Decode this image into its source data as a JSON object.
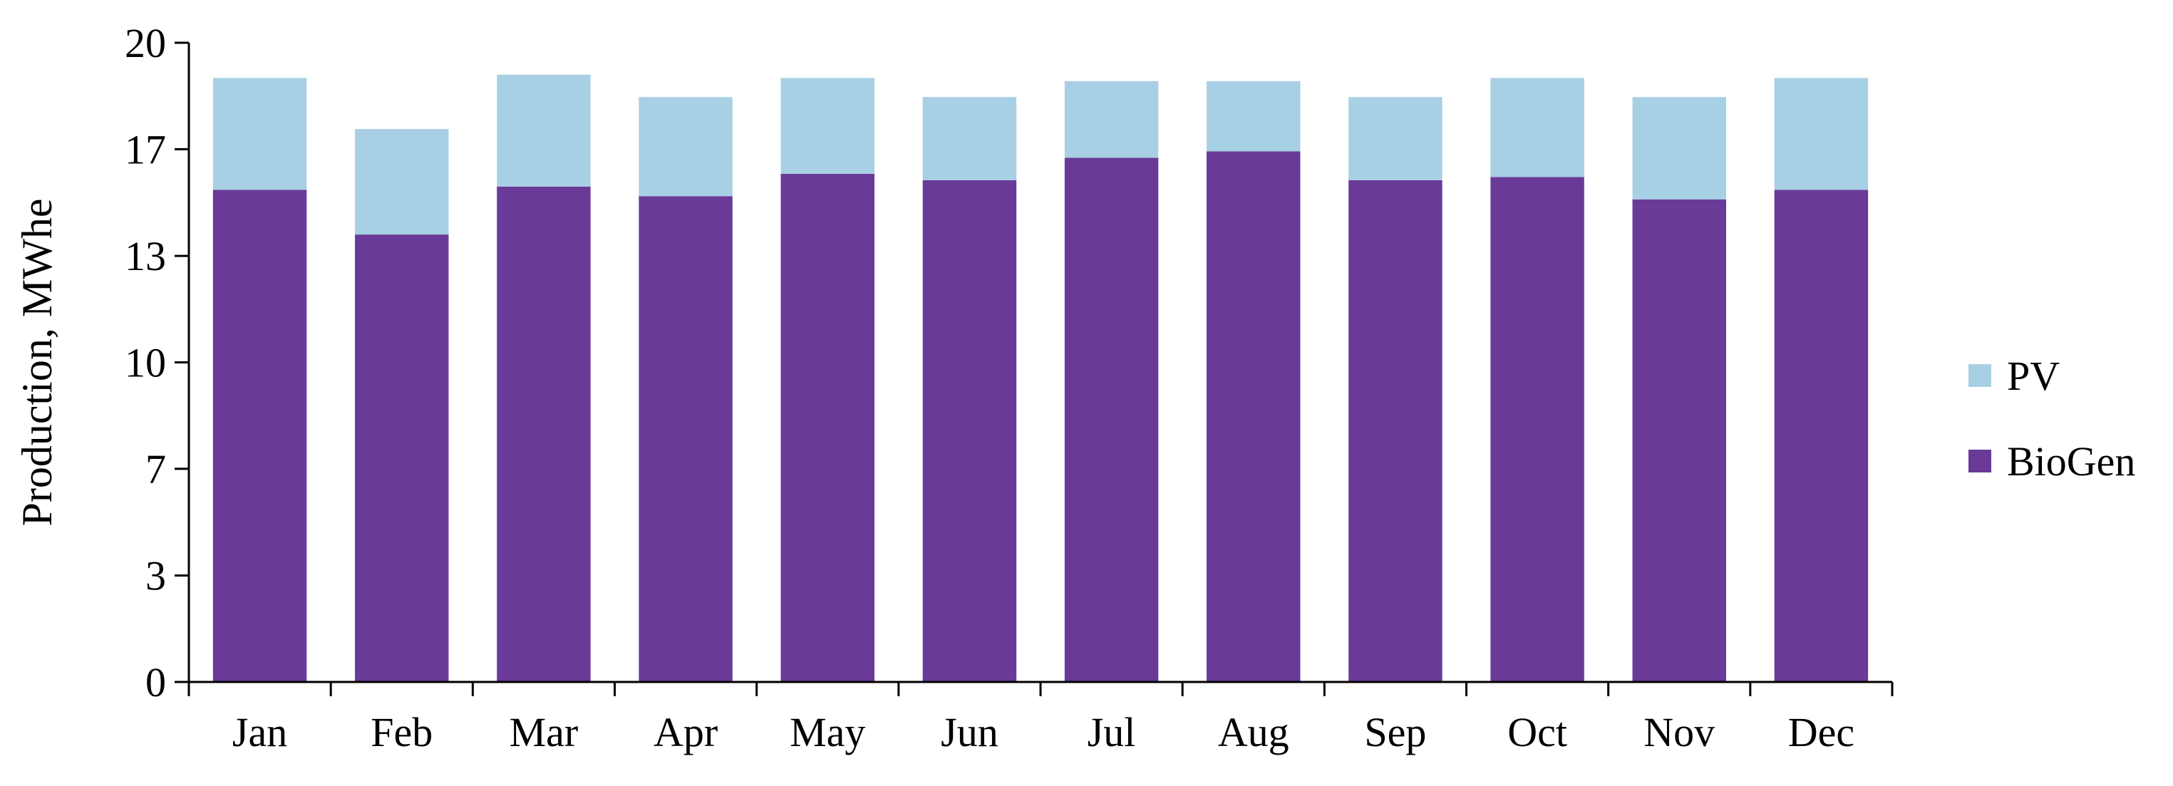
{
  "chart_data": {
    "type": "bar",
    "stacked": true,
    "categories": [
      "Jan",
      "Feb",
      "Mar",
      "Apr",
      "May",
      "Jun",
      "Jul",
      "Aug",
      "Sep",
      "Oct",
      "Nov",
      "Dec"
    ],
    "series": [
      {
        "name": "BioGen",
        "color": "#6a3a98",
        "values": [
          15.4,
          14.0,
          15.5,
          15.2,
          15.9,
          15.7,
          16.4,
          16.6,
          15.7,
          15.8,
          15.1,
          15.4
        ]
      },
      {
        "name": "PV",
        "color": "#a8d0e4",
        "values": [
          3.5,
          3.3,
          3.5,
          3.1,
          3.0,
          2.6,
          2.4,
          2.2,
          2.6,
          3.1,
          3.2,
          3.5
        ]
      }
    ],
    "title": "",
    "xlabel": "",
    "ylabel": "Production, MWhe",
    "ylim": [
      0,
      20
    ],
    "yticks": [
      {
        "value": 0,
        "label": "0"
      },
      {
        "value": 3.33,
        "label": "3"
      },
      {
        "value": 6.67,
        "label": "7"
      },
      {
        "value": 10,
        "label": "10"
      },
      {
        "value": 13.33,
        "label": "13"
      },
      {
        "value": 16.67,
        "label": "17"
      },
      {
        "value": 20,
        "label": "20"
      }
    ],
    "grid": false,
    "legend": {
      "position": "right",
      "order": [
        "PV",
        "BioGen"
      ]
    }
  }
}
